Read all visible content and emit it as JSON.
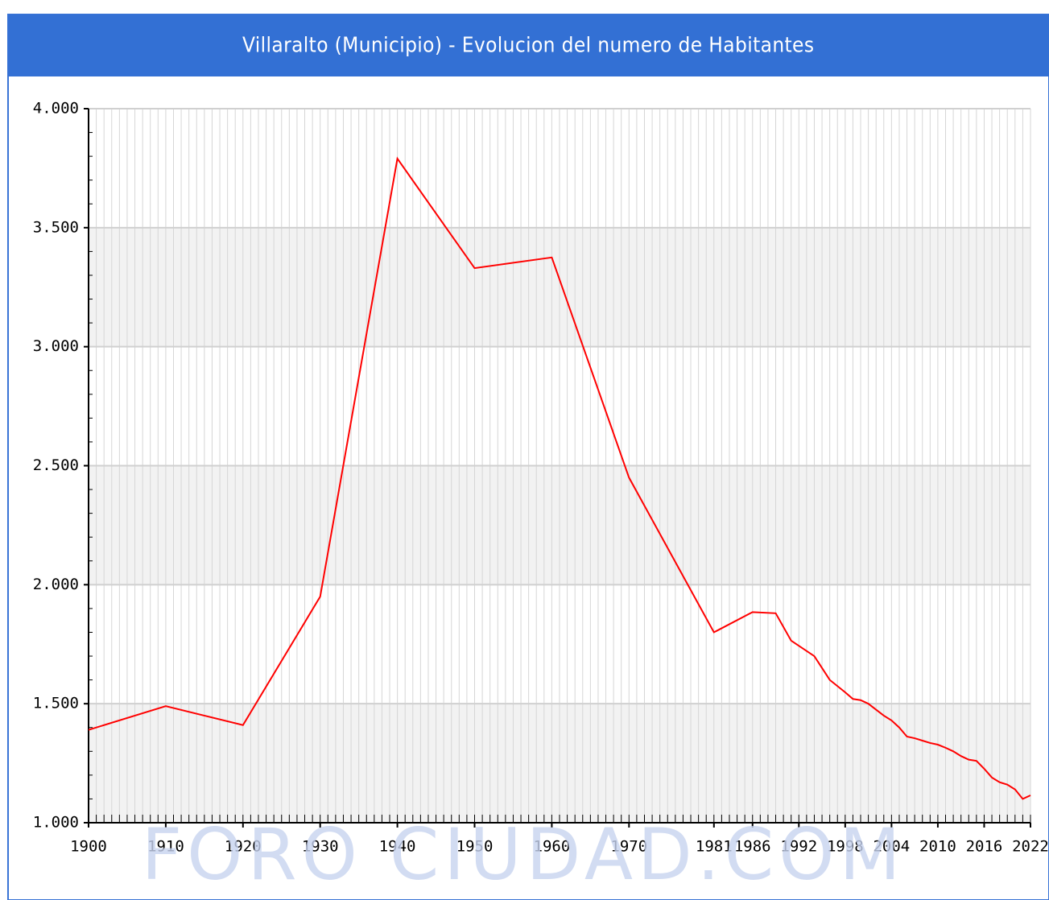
{
  "chart_data": {
    "type": "line",
    "title": "Villaralto (Municipio) - Evolucion del numero de Habitantes",
    "watermark": "FORO CIUDAD.COM",
    "x": [
      1900,
      1910,
      1920,
      1930,
      1940,
      1950,
      1960,
      1970,
      1981,
      1986,
      1989,
      1991,
      1994,
      1996,
      1998,
      1999,
      2000,
      2001,
      2002,
      2003,
      2004,
      2005,
      2006,
      2007,
      2008,
      2009,
      2010,
      2011,
      2012,
      2013,
      2014,
      2015,
      2016,
      2017,
      2018,
      2019,
      2020,
      2021,
      2022
    ],
    "series": [
      {
        "name": "Habitantes",
        "color": "#ff0000",
        "values": [
          1390,
          1490,
          1410,
          1950,
          3790,
          3330,
          3375,
          2450,
          1800,
          1885,
          1880,
          1765,
          1700,
          1600,
          1548,
          1520,
          1515,
          1500,
          1475,
          1450,
          1430,
          1400,
          1362,
          1355,
          1345,
          1335,
          1328,
          1315,
          1300,
          1280,
          1265,
          1260,
          1227,
          1190,
          1170,
          1160,
          1140,
          1100,
          1115
        ]
      }
    ],
    "xlim": [
      1900,
      2022
    ],
    "xticks": [
      1900,
      1910,
      1920,
      1930,
      1940,
      1950,
      1960,
      1970,
      1981,
      1986,
      1992,
      1998,
      2004,
      2010,
      2016,
      2022
    ],
    "ylim": [
      1000,
      4000
    ],
    "yticks": [
      {
        "value": 1000,
        "label": "1.000"
      },
      {
        "value": 1500,
        "label": "1.500"
      },
      {
        "value": 2000,
        "label": "2.000"
      },
      {
        "value": 2500,
        "label": "2.500"
      },
      {
        "value": 3000,
        "label": "3.000"
      },
      {
        "value": 3500,
        "label": "3.500"
      },
      {
        "value": 4000,
        "label": "4.000"
      }
    ],
    "grid": true
  }
}
